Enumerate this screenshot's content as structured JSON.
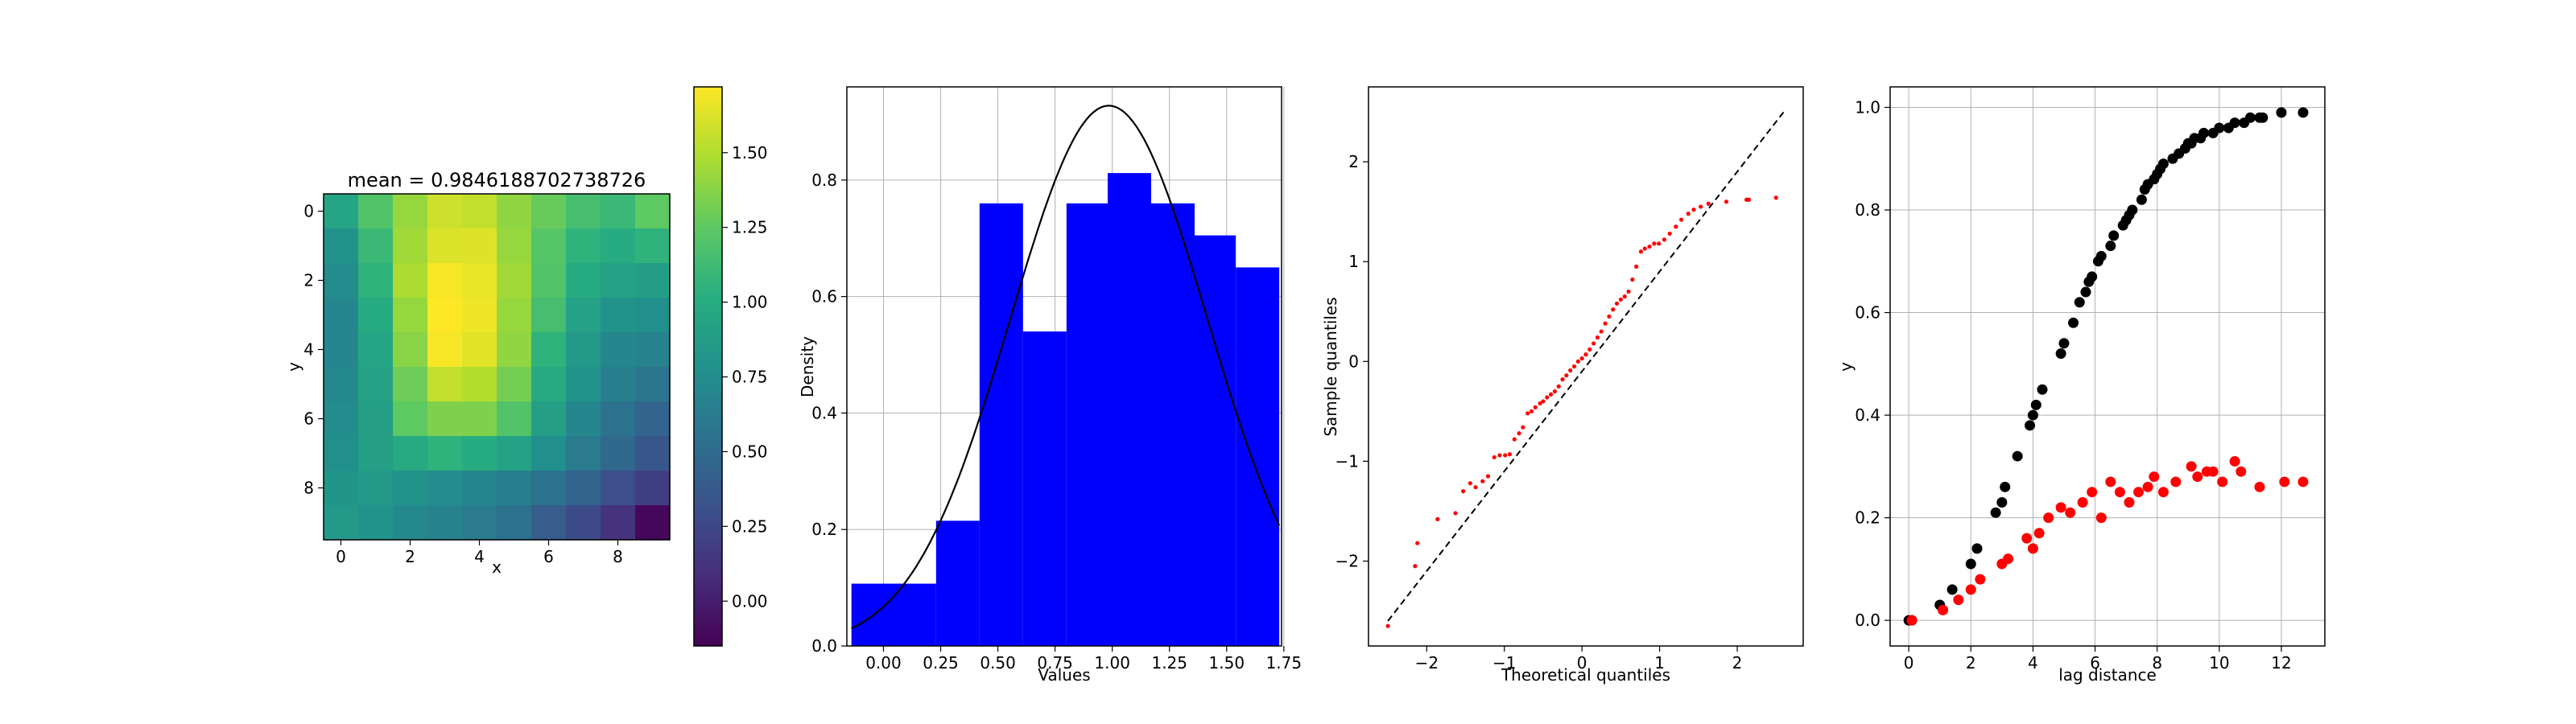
{
  "figure": {
    "background": "#ffffff"
  },
  "chart_data": [
    {
      "type": "heatmap",
      "title": "mean = 0.9846188702738726",
      "xlabel": "x",
      "ylabel": "y",
      "colormap": "viridis",
      "x_ticks": [
        "0",
        "2",
        "4",
        "6",
        "8"
      ],
      "y_ticks": [
        "0",
        "2",
        "4",
        "6",
        "8"
      ],
      "colorbar": {
        "range": [
          -0.15,
          1.72
        ],
        "ticks": [
          "0.00",
          "0.25",
          "0.50",
          "0.75",
          "1.00",
          "1.25",
          "1.50"
        ]
      },
      "grid": false,
      "values": [
        [
          0.95,
          1.2,
          1.42,
          1.58,
          1.55,
          1.4,
          1.28,
          1.15,
          1.1,
          1.25
        ],
        [
          0.8,
          1.1,
          1.45,
          1.62,
          1.63,
          1.42,
          1.22,
          1.05,
          1.0,
          1.05
        ],
        [
          0.75,
          1.05,
          1.48,
          1.7,
          1.66,
          1.45,
          1.2,
          1.0,
          0.92,
          0.88
        ],
        [
          0.7,
          1.0,
          1.42,
          1.72,
          1.68,
          1.42,
          1.15,
          0.92,
          0.8,
          0.78
        ],
        [
          0.7,
          0.95,
          1.38,
          1.7,
          1.64,
          1.4,
          1.05,
          0.85,
          0.7,
          0.68
        ],
        [
          0.72,
          0.92,
          1.3,
          1.55,
          1.5,
          1.32,
          0.98,
          0.8,
          0.65,
          0.58
        ],
        [
          0.75,
          0.9,
          1.25,
          1.35,
          1.35,
          1.2,
          0.9,
          0.7,
          0.55,
          0.45
        ],
        [
          0.78,
          0.9,
          0.98,
          1.05,
          1.0,
          0.92,
          0.78,
          0.62,
          0.48,
          0.35
        ],
        [
          0.82,
          0.85,
          0.8,
          0.75,
          0.7,
          0.65,
          0.55,
          0.45,
          0.3,
          0.2
        ],
        [
          0.85,
          0.8,
          0.72,
          0.68,
          0.62,
          0.55,
          0.4,
          0.28,
          0.12,
          -0.12
        ]
      ]
    },
    {
      "type": "bar",
      "subtype": "histogram",
      "xlabel": "Values",
      "ylabel": "Density",
      "bar_color": "#0000ff",
      "curve_color": "#000000",
      "xlim": [
        -0.16,
        1.74
      ],
      "ylim": [
        0,
        0.96
      ],
      "x_ticks": [
        0.0,
        0.25,
        0.5,
        0.75,
        1.0,
        1.25,
        1.5,
        1.75
      ],
      "x_tick_labels": [
        "0.00",
        "0.25",
        "0.50",
        "0.75",
        "1.00",
        "1.25",
        "1.50",
        "1.75"
      ],
      "y_ticks": [
        0.0,
        0.2,
        0.4,
        0.6,
        0.8
      ],
      "y_tick_labels": [
        "0.0",
        "0.2",
        "0.4",
        "0.6",
        "0.8"
      ],
      "grid": true,
      "bin_edges": [
        -0.14,
        0.23,
        0.42,
        0.61,
        0.8,
        0.98,
        1.17,
        1.36,
        1.54,
        1.73
      ],
      "values": [
        0.107,
        0.215,
        0.76,
        0.54,
        0.76,
        0.812,
        0.76,
        0.705,
        0.65
      ],
      "normal_fit": {
        "mean": 0.985,
        "std": 0.43
      }
    },
    {
      "type": "scatter",
      "xlabel": "Theoretical quantiles",
      "ylabel": "Sample quantiles",
      "marker_color": "#ff0000",
      "reference_line": {
        "style": "dashed",
        "color": "#000000",
        "x": [
          -2.5,
          2.6
        ],
        "y": [
          -2.6,
          2.5
        ]
      },
      "xlim": [
        -2.75,
        2.85
      ],
      "ylim": [
        -2.85,
        2.75
      ],
      "x_ticks": [
        -2,
        -1,
        0,
        1,
        2
      ],
      "x_tick_labels": [
        "−2",
        "−1",
        "0",
        "1",
        "2"
      ],
      "y_ticks": [
        -2,
        -1,
        0,
        1,
        2
      ],
      "y_tick_labels": [
        "−2",
        "−1",
        "0",
        "1",
        "2"
      ],
      "grid": false,
      "theoretical_quantiles": [
        -2.5,
        -2.15,
        -2.12,
        -1.86,
        -1.63,
        -1.53,
        -1.44,
        -1.37,
        -1.28,
        -1.21,
        -1.13,
        -1.06,
        -0.99,
        -0.93,
        -0.87,
        -0.81,
        -0.76,
        -0.7,
        -0.65,
        -0.6,
        -0.54,
        -0.5,
        -0.45,
        -0.4,
        -0.35,
        -0.3,
        -0.25,
        -0.2,
        -0.15,
        -0.1,
        -0.05,
        0.0,
        0.05,
        0.1,
        0.15,
        0.2,
        0.25,
        0.3,
        0.35,
        0.4,
        0.45,
        0.5,
        0.55,
        0.6,
        0.65,
        0.7,
        0.76,
        0.81,
        0.87,
        0.93,
        0.99,
        1.06,
        1.13,
        1.21,
        1.28,
        1.37,
        1.44,
        1.53,
        1.63,
        1.86,
        2.12,
        2.15,
        2.5
      ],
      "sample_quantiles": [
        -2.65,
        -2.05,
        -1.82,
        -1.58,
        -1.52,
        -1.3,
        -1.22,
        -1.26,
        -1.2,
        -1.15,
        -0.96,
        -0.94,
        -0.94,
        -0.93,
        -0.78,
        -0.72,
        -0.66,
        -0.52,
        -0.5,
        -0.46,
        -0.42,
        -0.4,
        -0.36,
        -0.33,
        -0.3,
        -0.25,
        -0.18,
        -0.14,
        -0.09,
        -0.05,
        0.0,
        0.03,
        0.07,
        0.12,
        0.18,
        0.24,
        0.3,
        0.38,
        0.45,
        0.52,
        0.58,
        0.62,
        0.65,
        0.7,
        0.82,
        0.95,
        1.1,
        1.13,
        1.15,
        1.18,
        1.18,
        1.22,
        1.28,
        1.35,
        1.42,
        1.48,
        1.52,
        1.55,
        1.58,
        1.6,
        1.62,
        1.62,
        1.64
      ]
    },
    {
      "type": "scatter",
      "xlabel": "lag distance",
      "ylabel": "y",
      "xlim": [
        -0.6,
        13.4
      ],
      "ylim": [
        -0.05,
        1.04
      ],
      "x_ticks": [
        0,
        2,
        4,
        6,
        8,
        10,
        12
      ],
      "x_tick_labels": [
        "0",
        "2",
        "4",
        "6",
        "8",
        "10",
        "12"
      ],
      "y_ticks": [
        0.0,
        0.2,
        0.4,
        0.6,
        0.8,
        1.0
      ],
      "y_tick_labels": [
        "0.0",
        "0.2",
        "0.4",
        "0.6",
        "0.8",
        "1.0"
      ],
      "grid": true,
      "series": [
        {
          "color": "#000000",
          "x": [
            0.0,
            0.1,
            1.0,
            1.4,
            2.0,
            2.2,
            2.8,
            3.0,
            3.1,
            3.5,
            3.9,
            4.0,
            4.1,
            4.3,
            4.9,
            5.0,
            5.3,
            5.5,
            5.7,
            5.8,
            5.9,
            6.1,
            6.2,
            6.5,
            6.6,
            6.9,
            7.0,
            7.1,
            7.2,
            7.5,
            7.6,
            7.7,
            7.9,
            8.0,
            8.1,
            8.2,
            8.5,
            8.7,
            8.9,
            9.0,
            9.1,
            9.2,
            9.4,
            9.5,
            9.8,
            10.0,
            10.3,
            10.5,
            10.8,
            11.0,
            11.3,
            11.4,
            12.0,
            12.7
          ],
          "y": [
            0.0,
            0.0,
            0.03,
            0.06,
            0.11,
            0.14,
            0.21,
            0.23,
            0.26,
            0.32,
            0.38,
            0.4,
            0.42,
            0.45,
            0.52,
            0.54,
            0.58,
            0.62,
            0.64,
            0.66,
            0.67,
            0.7,
            0.71,
            0.73,
            0.75,
            0.77,
            0.78,
            0.79,
            0.8,
            0.82,
            0.84,
            0.85,
            0.86,
            0.87,
            0.88,
            0.89,
            0.9,
            0.91,
            0.92,
            0.93,
            0.93,
            0.94,
            0.94,
            0.95,
            0.95,
            0.96,
            0.96,
            0.97,
            0.97,
            0.98,
            0.98,
            0.98,
            0.99,
            0.99
          ]
        },
        {
          "color": "#ff0000",
          "x": [
            0.1,
            1.1,
            1.6,
            2.0,
            2.3,
            3.0,
            3.2,
            3.8,
            4.0,
            4.2,
            4.5,
            4.9,
            5.2,
            5.6,
            5.9,
            6.2,
            6.5,
            6.8,
            7.1,
            7.4,
            7.7,
            7.9,
            8.2,
            8.6,
            9.1,
            9.3,
            9.6,
            9.8,
            10.1,
            10.5,
            10.7,
            11.3,
            12.1,
            12.7
          ],
          "y": [
            0.0,
            0.02,
            0.04,
            0.06,
            0.08,
            0.11,
            0.12,
            0.16,
            0.14,
            0.17,
            0.2,
            0.22,
            0.21,
            0.23,
            0.25,
            0.2,
            0.27,
            0.25,
            0.23,
            0.25,
            0.26,
            0.28,
            0.25,
            0.27,
            0.3,
            0.28,
            0.29,
            0.29,
            0.27,
            0.31,
            0.29,
            0.26,
            0.27,
            0.27
          ]
        }
      ]
    }
  ]
}
